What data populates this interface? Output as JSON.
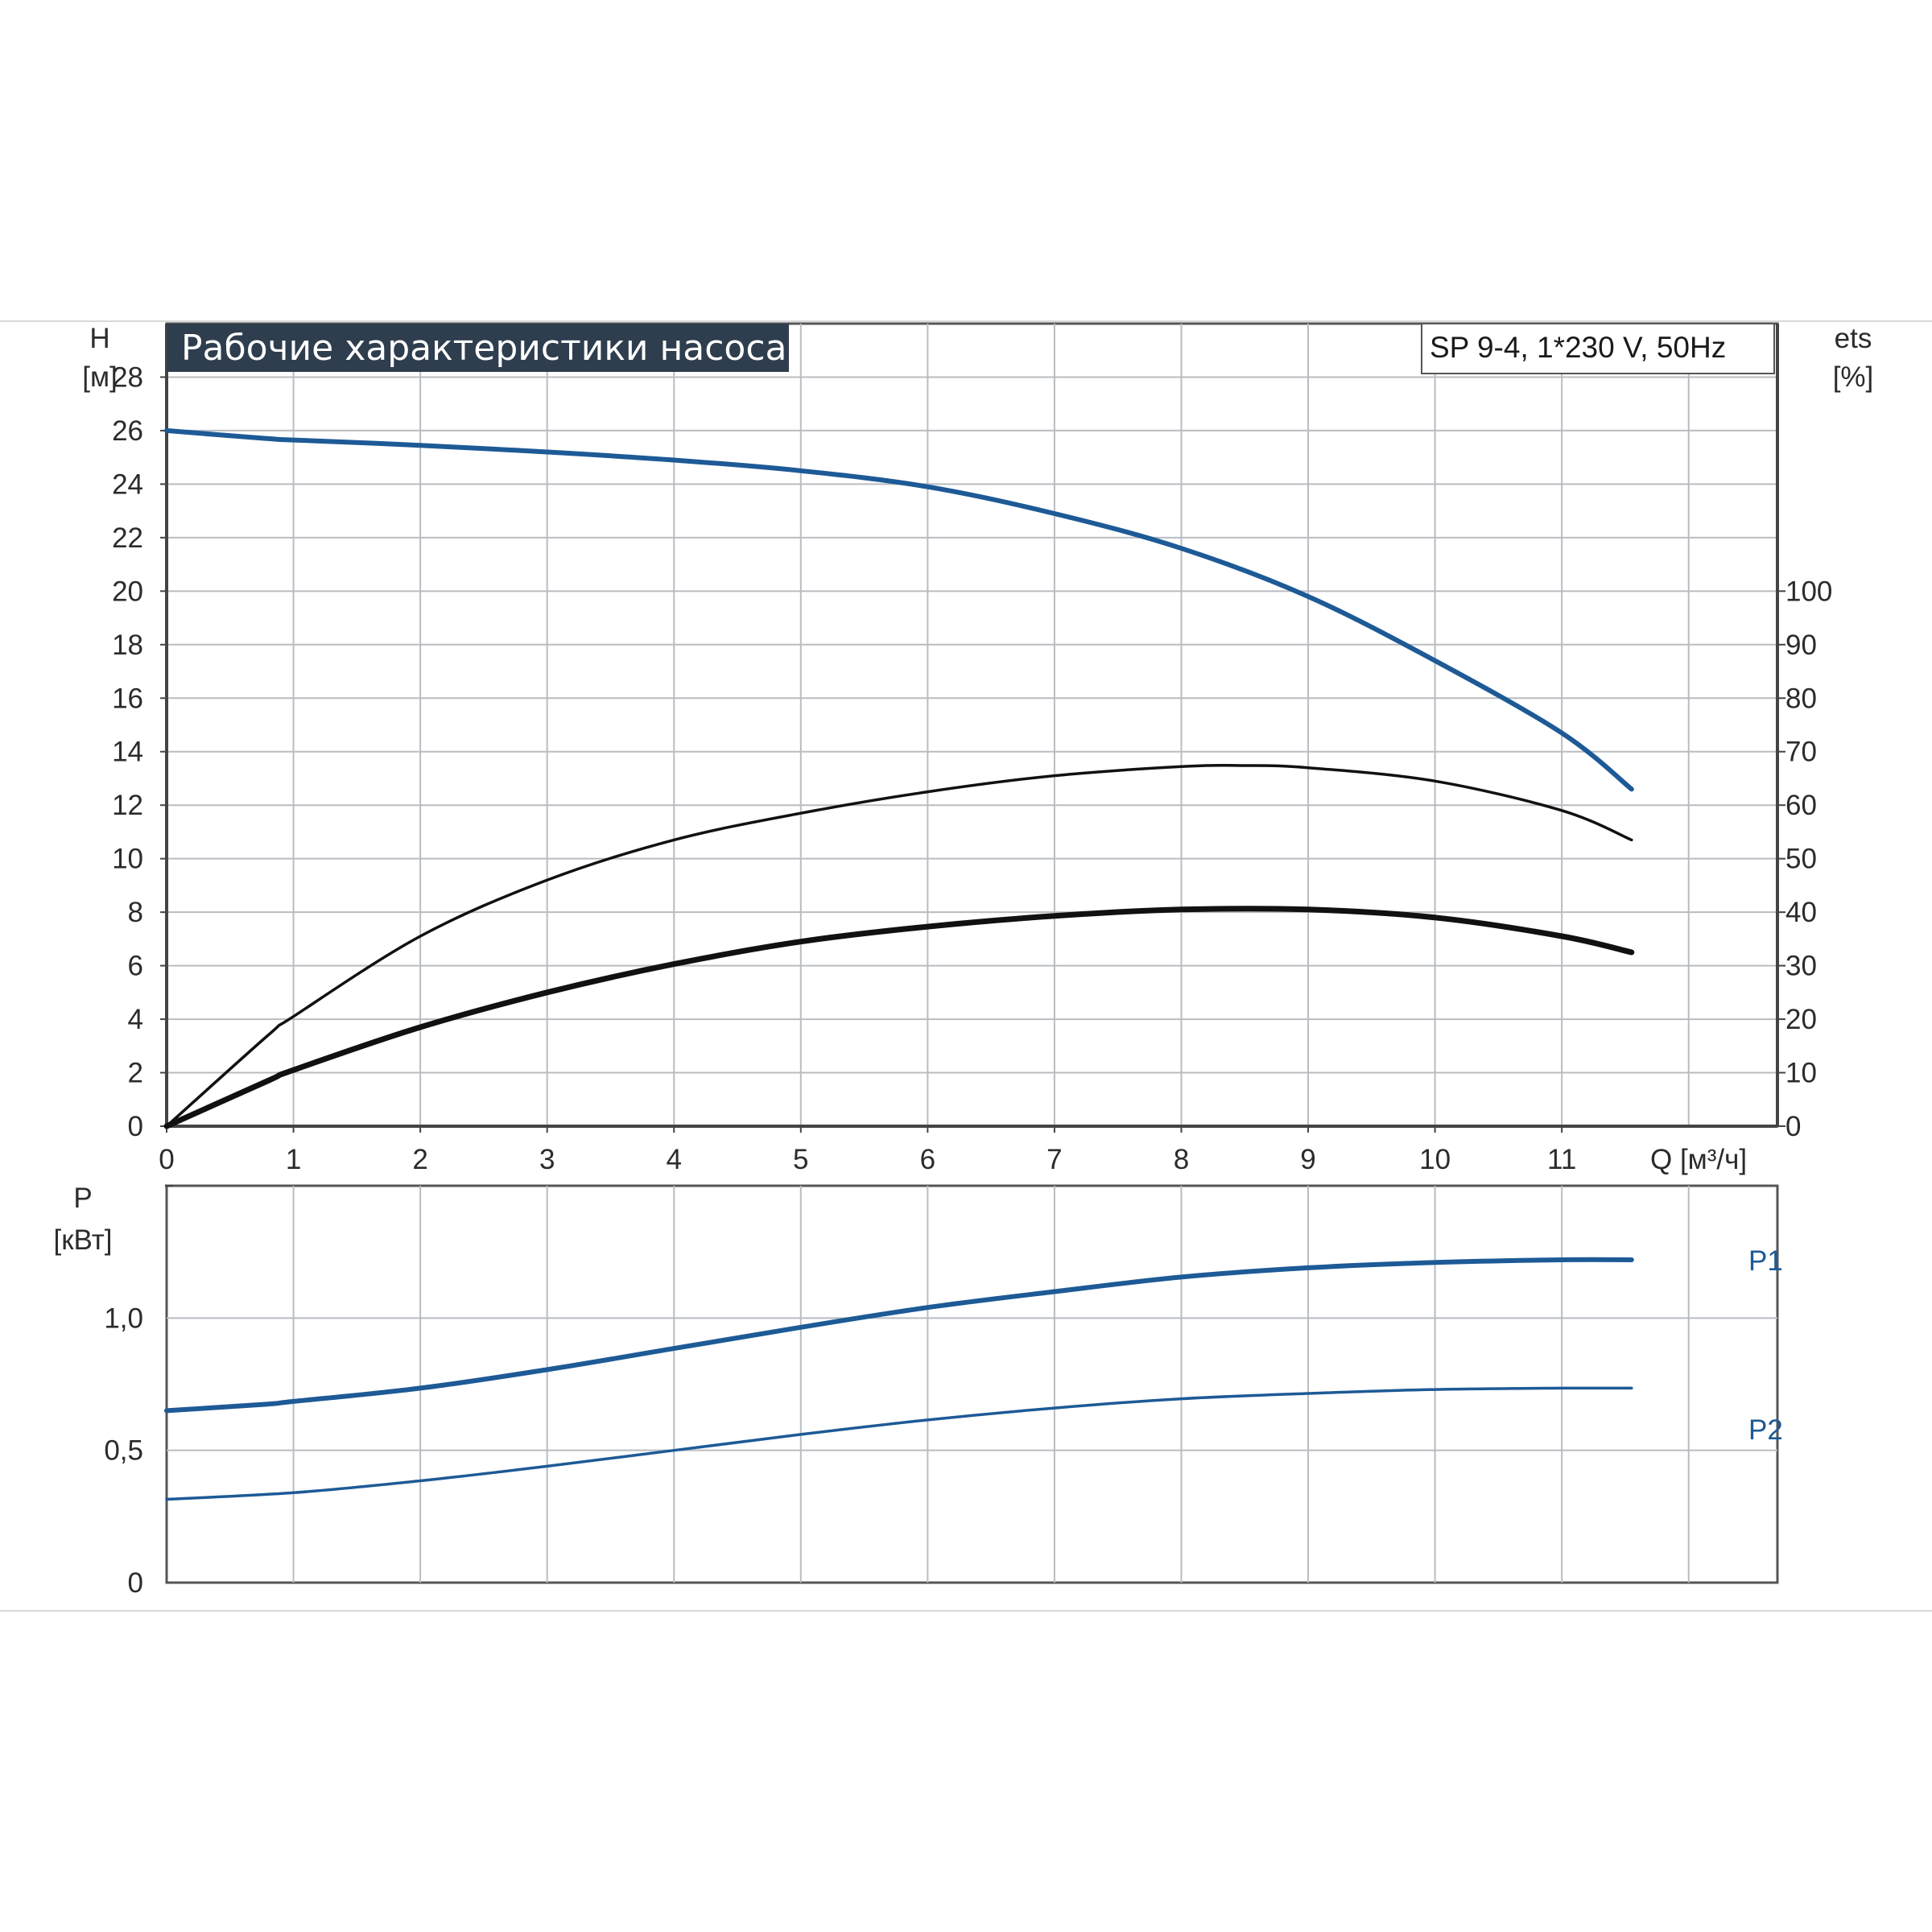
{
  "title": "Рабочие характеристики насоса",
  "model": "SP 9-4, 1*230 V, 50Hz",
  "colors": {
    "title_bg": "#2f3e4e",
    "blue": "#1d5a96",
    "black": "#111111",
    "grid": "#b9bcc0",
    "axis": "#444444"
  },
  "chart_data": [
    {
      "type": "line",
      "y_axis_label": "H",
      "y_axis_unit": "[м]",
      "y2_axis_label": "ets",
      "y2_axis_unit": "[%]",
      "x_axis_label": "Q [м³/ч]",
      "x_ticks": [
        "0",
        "1",
        "2",
        "3",
        "4",
        "5",
        "6",
        "7",
        "8",
        "9",
        "10",
        "11"
      ],
      "y_ticks": [
        "0",
        "2",
        "4",
        "6",
        "8",
        "10",
        "12",
        "14",
        "16",
        "18",
        "20",
        "22",
        "24",
        "26",
        "28"
      ],
      "y2_ticks": [
        "0",
        "10",
        "20",
        "30",
        "40",
        "50",
        "60",
        "70",
        "80",
        "90",
        "100"
      ],
      "xlim": [
        0,
        12.7
      ],
      "ylim": [
        0,
        30
      ],
      "y2lim": [
        0,
        150
      ],
      "grid": true,
      "series": [
        {
          "role": "head",
          "axis": "left",
          "color": "#1d5a96",
          "points": [
            [
              0,
              26.0
            ],
            [
              0.8,
              25.7
            ],
            [
              1,
              25.65
            ],
            [
              2,
              25.45
            ],
            [
              3,
              25.2
            ],
            [
              4,
              24.9
            ],
            [
              5,
              24.5
            ],
            [
              6,
              23.9
            ],
            [
              7,
              22.9
            ],
            [
              8,
              21.6
            ],
            [
              9,
              19.8
            ],
            [
              10,
              17.4
            ],
            [
              11,
              14.7
            ],
            [
              11.55,
              12.6
            ]
          ]
        },
        {
          "role": "efficiency-thin",
          "axis": "right",
          "color": "#111111",
          "points": [
            [
              0,
              0
            ],
            [
              0.8,
              17
            ],
            [
              1,
              20.5
            ],
            [
              2,
              35.5
            ],
            [
              3,
              46
            ],
            [
              4,
              53.5
            ],
            [
              5,
              58.5
            ],
            [
              6,
              62.5
            ],
            [
              7,
              65.5
            ],
            [
              8,
              67.2
            ],
            [
              8.5,
              67.4
            ],
            [
              9,
              67
            ],
            [
              10,
              64.5
            ],
            [
              11,
              59
            ],
            [
              11.55,
              53.5
            ]
          ]
        },
        {
          "role": "efficiency-thick",
          "axis": "right",
          "color": "#111111",
          "points": [
            [
              0,
              0
            ],
            [
              0.8,
              8.5
            ],
            [
              1,
              10.5
            ],
            [
              2,
              18.5
            ],
            [
              3,
              25
            ],
            [
              4,
              30.3
            ],
            [
              5,
              34.5
            ],
            [
              6,
              37.3
            ],
            [
              7,
              39.3
            ],
            [
              8,
              40.5
            ],
            [
              9,
              40.5
            ],
            [
              10,
              39
            ],
            [
              11,
              35.5
            ],
            [
              11.55,
              32.5
            ]
          ]
        }
      ]
    },
    {
      "type": "line",
      "y_axis_label": "P",
      "y_axis_unit": "[кВт]",
      "y_ticks": [
        "0",
        "0,5",
        "1,0"
      ],
      "xlim": [
        0,
        12.7
      ],
      "ylim": [
        0,
        1.5
      ],
      "grid": true,
      "series": [
        {
          "name": "P1",
          "color": "#1d5a96",
          "points": [
            [
              0,
              0.65
            ],
            [
              0.8,
              0.675
            ],
            [
              1,
              0.685
            ],
            [
              2,
              0.735
            ],
            [
              3,
              0.805
            ],
            [
              4,
              0.885
            ],
            [
              5,
              0.965
            ],
            [
              6,
              1.04
            ],
            [
              7,
              1.1
            ],
            [
              8,
              1.155
            ],
            [
              9,
              1.19
            ],
            [
              10,
              1.21
            ],
            [
              11,
              1.22
            ],
            [
              11.55,
              1.22
            ]
          ]
        },
        {
          "name": "P2",
          "color": "#1d5a96",
          "points": [
            [
              0,
              0.315
            ],
            [
              1,
              0.34
            ],
            [
              2,
              0.385
            ],
            [
              3,
              0.44
            ],
            [
              4,
              0.5
            ],
            [
              5,
              0.56
            ],
            [
              6,
              0.615
            ],
            [
              7,
              0.66
            ],
            [
              8,
              0.695
            ],
            [
              9,
              0.715
            ],
            [
              10,
              0.73
            ],
            [
              11,
              0.735
            ],
            [
              11.55,
              0.735
            ]
          ]
        }
      ]
    }
  ]
}
